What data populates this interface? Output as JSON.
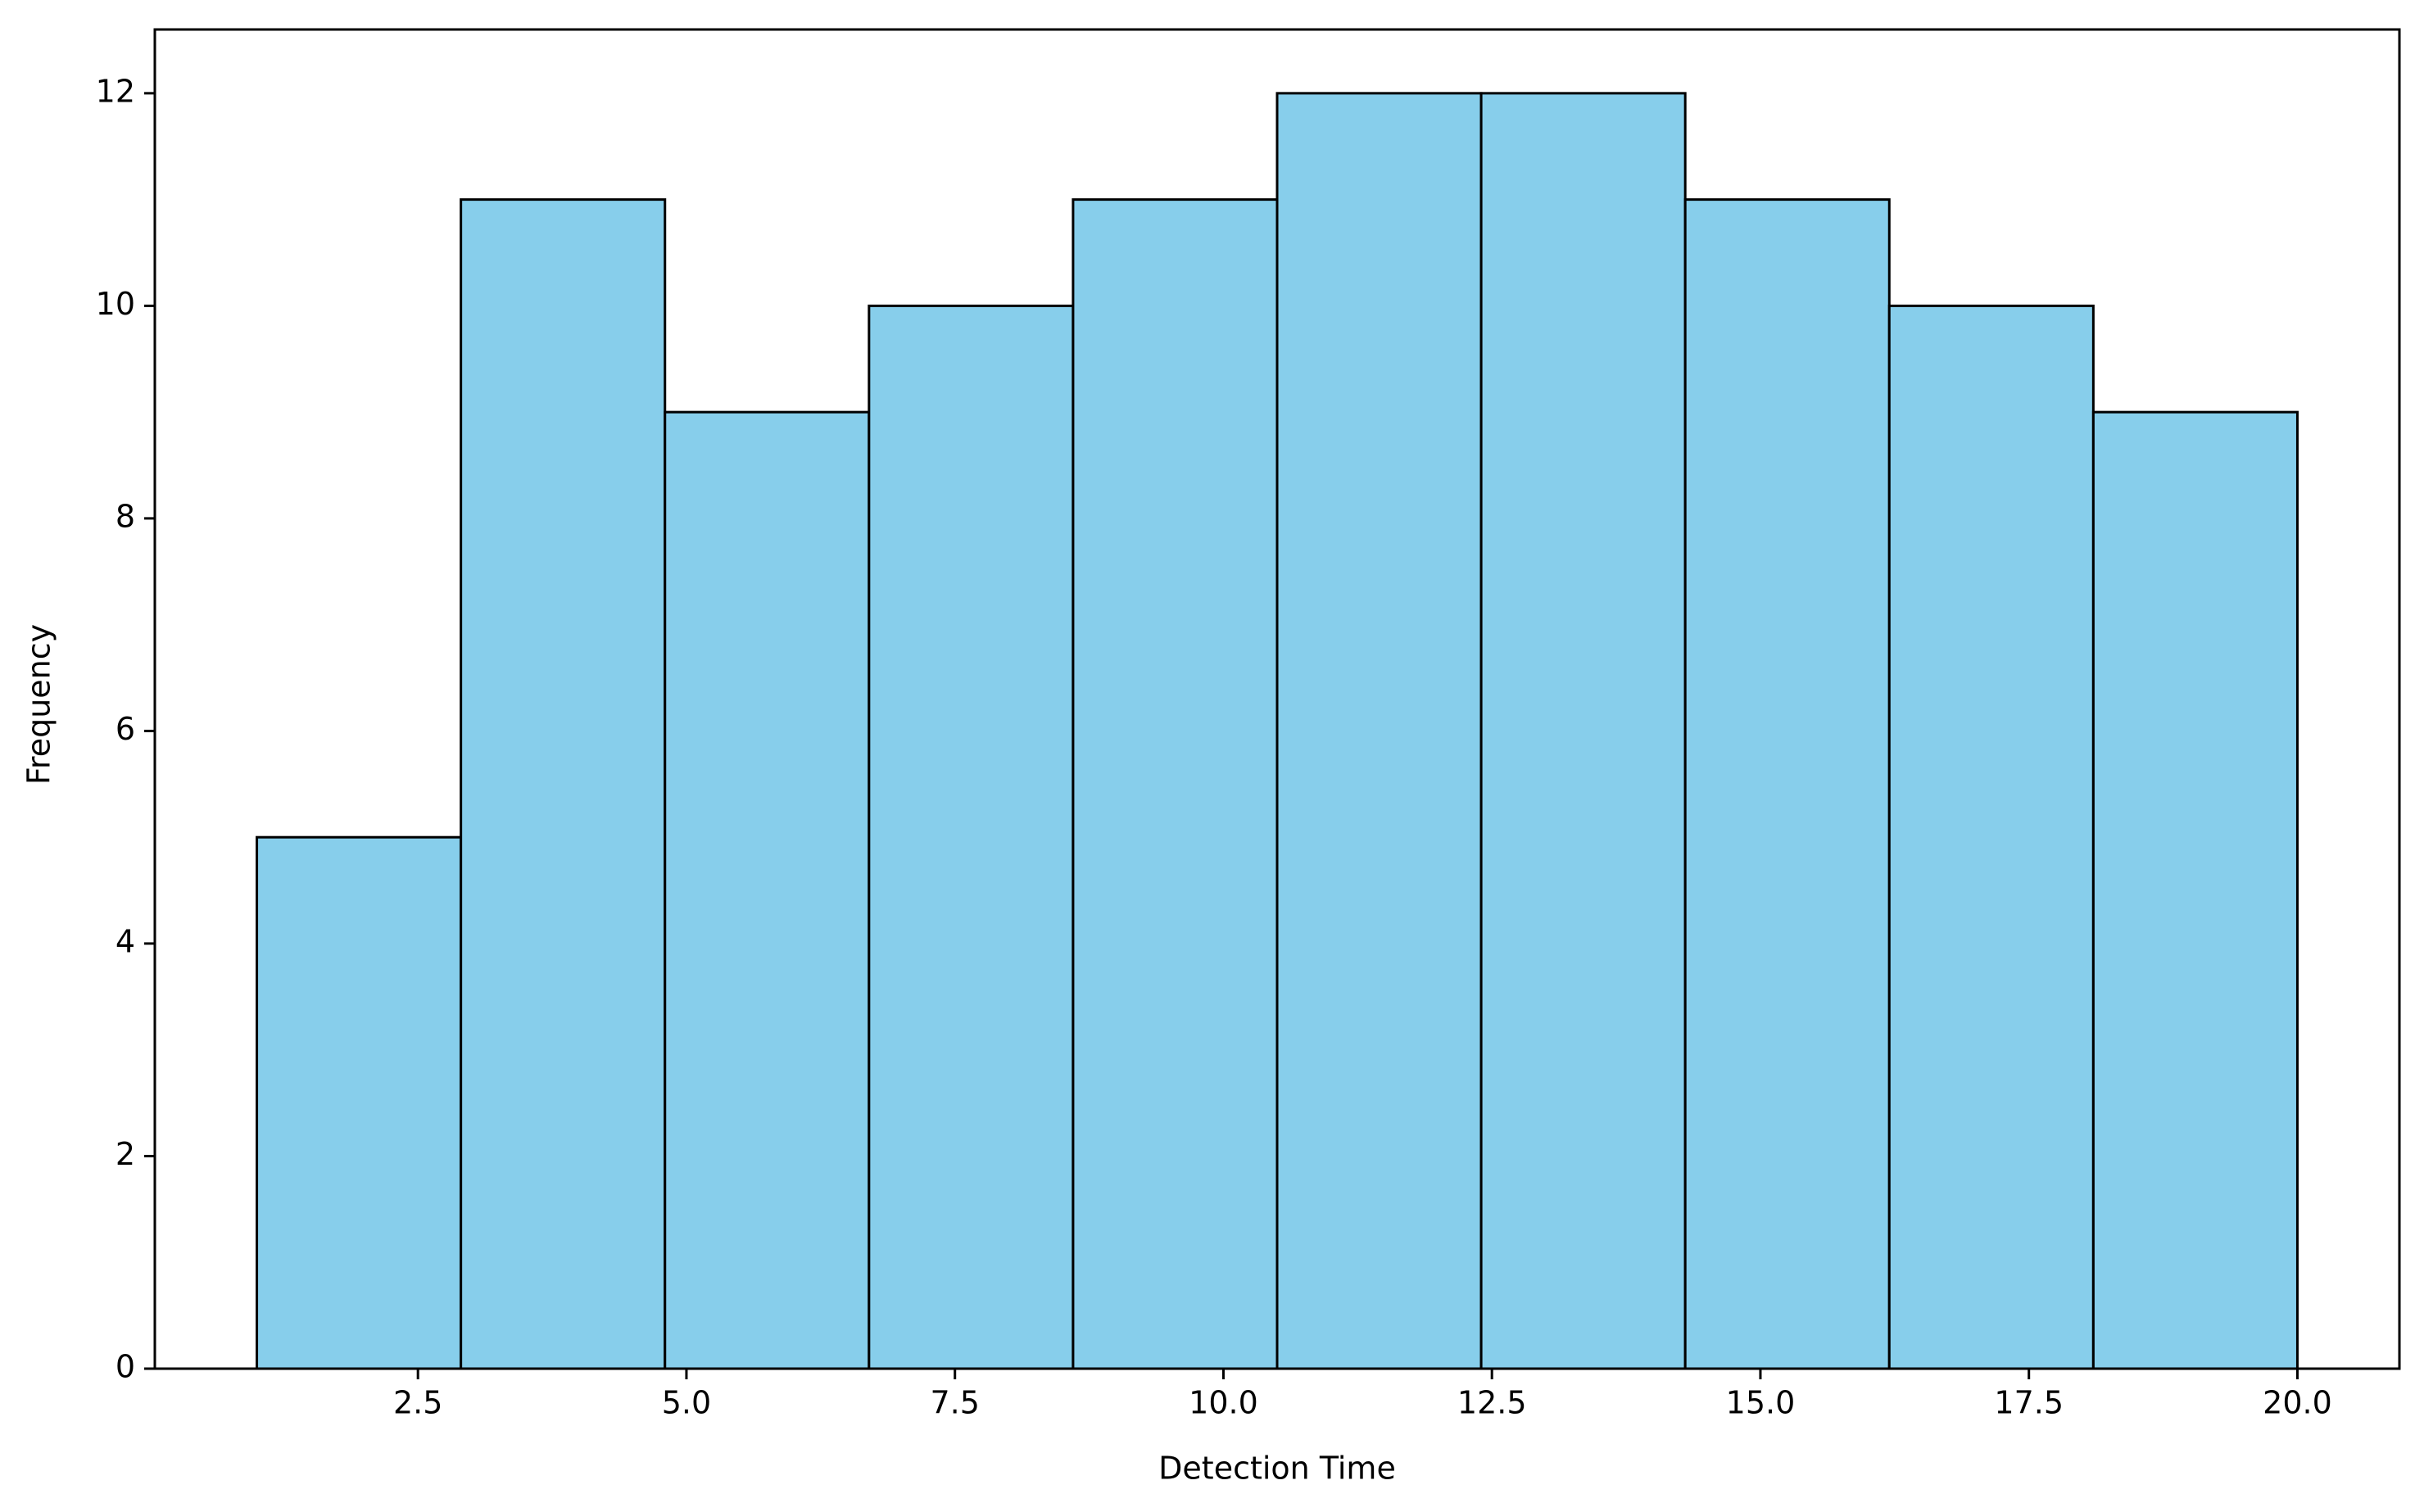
{
  "chart_data": {
    "type": "histogram",
    "xlabel": "Detection Time",
    "ylabel": "Frequency",
    "bins": [
      1.0,
      2.9,
      4.8,
      6.7,
      8.6,
      10.5,
      12.4,
      14.3,
      16.2,
      18.1,
      20.0
    ],
    "values": [
      5,
      11,
      9,
      10,
      11,
      12,
      12,
      11,
      10,
      9
    ],
    "color": "#87ceeb",
    "edgecolor": "#000000",
    "xlim": [
      0.05,
      20.95
    ],
    "ylim": [
      0,
      12.6
    ],
    "xticks": [
      2.5,
      {
        "value": 5,
        "label": "5.0"
      },
      7.5,
      {
        "value": 10,
        "label": "10.0"
      },
      12.5,
      {
        "value": 15,
        "label": "15.0"
      },
      17.5,
      {
        "value": 20,
        "label": "20.0"
      }
    ],
    "yticks": [
      0,
      2,
      4,
      6,
      8,
      10,
      12
    ],
    "grid": false
  }
}
